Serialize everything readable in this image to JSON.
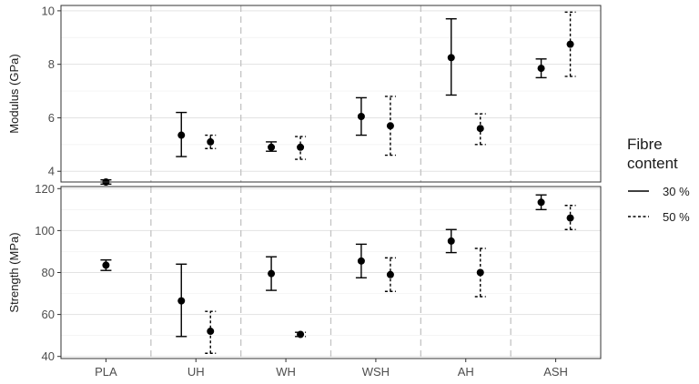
{
  "chart_data": {
    "type": "errorbar-faceted",
    "categories": [
      "PLA",
      "UH",
      "WH",
      "WSH",
      "AH",
      "ASH"
    ],
    "legend": {
      "title": [
        "Fibre",
        "content"
      ],
      "entries": [
        {
          "label": "30 %",
          "linestyle": "solid"
        },
        {
          "label": "50 %",
          "linestyle": "dashed"
        }
      ],
      "placement": "right"
    },
    "grid": true,
    "panels": [
      {
        "id": "modulus",
        "ylabel": "Modulus (GPa)",
        "ylim": [
          3.6,
          10.2
        ],
        "yticks": [
          4,
          6,
          8,
          10
        ],
        "series": [
          {
            "name": "30 %",
            "linestyle": "solid",
            "points": [
              {
                "category": "PLA",
                "y": 3.6,
                "ymin": 3.52,
                "ymax": 3.68
              },
              {
                "category": "UH",
                "y": 5.35,
                "ymin": 4.55,
                "ymax": 6.2
              },
              {
                "category": "WH",
                "y": 4.9,
                "ymin": 4.75,
                "ymax": 5.1
              },
              {
                "category": "WSH",
                "y": 6.05,
                "ymin": 5.35,
                "ymax": 6.75
              },
              {
                "category": "AH",
                "y": 8.25,
                "ymin": 6.85,
                "ymax": 9.7
              },
              {
                "category": "ASH",
                "y": 7.85,
                "ymin": 7.5,
                "ymax": 8.2
              }
            ]
          },
          {
            "name": "50 %",
            "linestyle": "dashed",
            "points": [
              {
                "category": "UH",
                "y": 5.1,
                "ymin": 4.85,
                "ymax": 5.35
              },
              {
                "category": "WH",
                "y": 4.9,
                "ymin": 4.45,
                "ymax": 5.3
              },
              {
                "category": "WSH",
                "y": 5.7,
                "ymin": 4.6,
                "ymax": 6.8
              },
              {
                "category": "AH",
                "y": 5.6,
                "ymin": 5.0,
                "ymax": 6.15
              },
              {
                "category": "ASH",
                "y": 8.75,
                "ymin": 7.55,
                "ymax": 9.95
              }
            ]
          }
        ]
      },
      {
        "id": "strength",
        "ylabel": "Strength (MPa)",
        "ylim": [
          39,
          121
        ],
        "yticks": [
          40,
          60,
          80,
          100,
          120
        ],
        "series": [
          {
            "name": "30 %",
            "linestyle": "solid",
            "points": [
              {
                "category": "PLA",
                "y": 83.5,
                "ymin": 81,
                "ymax": 86
              },
              {
                "category": "UH",
                "y": 66.5,
                "ymin": 49.5,
                "ymax": 84
              },
              {
                "category": "WH",
                "y": 79.5,
                "ymin": 71.5,
                "ymax": 87.5
              },
              {
                "category": "WSH",
                "y": 85.5,
                "ymin": 77.5,
                "ymax": 93.5
              },
              {
                "category": "AH",
                "y": 95,
                "ymin": 89.5,
                "ymax": 100.5
              },
              {
                "category": "ASH",
                "y": 113.5,
                "ymin": 110,
                "ymax": 117
              }
            ]
          },
          {
            "name": "50 %",
            "linestyle": "dashed",
            "points": [
              {
                "category": "UH",
                "y": 52,
                "ymin": 41.5,
                "ymax": 61.5
              },
              {
                "category": "WH",
                "y": 50.5,
                "ymin": 49.5,
                "ymax": 51.5
              },
              {
                "category": "WSH",
                "y": 79,
                "ymin": 71,
                "ymax": 87
              },
              {
                "category": "AH",
                "y": 80,
                "ymin": 68.5,
                "ymax": 91.5
              },
              {
                "category": "ASH",
                "y": 106,
                "ymin": 100.5,
                "ymax": 112
              }
            ]
          }
        ]
      }
    ]
  }
}
